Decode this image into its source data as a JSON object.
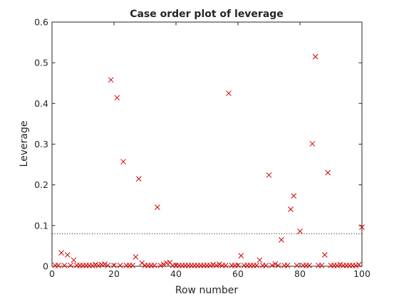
{
  "chart_data": {
    "type": "scatter",
    "title": "Case order plot of leverage",
    "xlabel": "Row number",
    "ylabel": "Leverage",
    "xlim": [
      0,
      100
    ],
    "ylim": [
      0,
      0.6
    ],
    "xticks": [
      0,
      20,
      40,
      60,
      80,
      100
    ],
    "xtick_labels": [
      "0",
      "20",
      "40",
      "60",
      "80",
      "100"
    ],
    "yticks": [
      0,
      0.1,
      0.2,
      0.3,
      0.4,
      0.5,
      0.6
    ],
    "ytick_labels": [
      "0",
      "0.1",
      "0.2",
      "0.3",
      "0.4",
      "0.5",
      "0.6"
    ],
    "grid": false,
    "marker": "x",
    "marker_color": "#d40000",
    "reference_line": {
      "y": 0.08,
      "style": "dotted",
      "color": "#000000"
    },
    "series": [
      {
        "points": [
          [
            1,
            0.002
          ],
          [
            2,
            0.002
          ],
          [
            3,
            0.033
          ],
          [
            4,
            0.002
          ],
          [
            5,
            0.028
          ],
          [
            6,
            0.002
          ],
          [
            7,
            0.015
          ],
          [
            8,
            0.002
          ],
          [
            9,
            0.002
          ],
          [
            10,
            0.002
          ],
          [
            11,
            0.002
          ],
          [
            12,
            0.002
          ],
          [
            13,
            0.002
          ],
          [
            14,
            0.004
          ],
          [
            15,
            0.002
          ],
          [
            16,
            0.004
          ],
          [
            17,
            0.005
          ],
          [
            18,
            0.002
          ],
          [
            19,
            0.458
          ],
          [
            20,
            0.002
          ],
          [
            21,
            0.414
          ],
          [
            22,
            0.002
          ],
          [
            23,
            0.257
          ],
          [
            24,
            0.002
          ],
          [
            25,
            0.002
          ],
          [
            26,
            0.002
          ],
          [
            27,
            0.023
          ],
          [
            28,
            0.215
          ],
          [
            29,
            0.008
          ],
          [
            30,
            0.002
          ],
          [
            31,
            0.002
          ],
          [
            32,
            0.002
          ],
          [
            33,
            0.002
          ],
          [
            34,
            0.145
          ],
          [
            35,
            0.002
          ],
          [
            36,
            0.005
          ],
          [
            37,
            0.008
          ],
          [
            38,
            0.009
          ],
          [
            39,
            0.002
          ],
          [
            40,
            0.002
          ],
          [
            41,
            0.002
          ],
          [
            42,
            0.002
          ],
          [
            43,
            0.002
          ],
          [
            44,
            0.002
          ],
          [
            45,
            0.002
          ],
          [
            46,
            0.002
          ],
          [
            47,
            0.002
          ],
          [
            48,
            0.002
          ],
          [
            49,
            0.002
          ],
          [
            50,
            0.002
          ],
          [
            51,
            0.002
          ],
          [
            52,
            0.004
          ],
          [
            53,
            0.002
          ],
          [
            54,
            0.005
          ],
          [
            55,
            0.002
          ],
          [
            56,
            0.002
          ],
          [
            57,
            0.425
          ],
          [
            58,
            0.002
          ],
          [
            59,
            0.002
          ],
          [
            60,
            0.002
          ],
          [
            61,
            0.026
          ],
          [
            62,
            0.002
          ],
          [
            63,
            0.002
          ],
          [
            64,
            0.002
          ],
          [
            65,
            0.002
          ],
          [
            66,
            0.002
          ],
          [
            67,
            0.015
          ],
          [
            68,
            0.002
          ],
          [
            69,
            0.002
          ],
          [
            70,
            0.224
          ],
          [
            71,
            0.002
          ],
          [
            72,
            0.006
          ],
          [
            73,
            0.002
          ],
          [
            74,
            0.065
          ],
          [
            75,
            0.002
          ],
          [
            76,
            0.002
          ],
          [
            77,
            0.14
          ],
          [
            78,
            0.173
          ],
          [
            79,
            0.002
          ],
          [
            80,
            0.086
          ],
          [
            81,
            0.002
          ],
          [
            82,
            0.002
          ],
          [
            83,
            0.002
          ],
          [
            84,
            0.301
          ],
          [
            85,
            0.515
          ],
          [
            86,
            0.002
          ],
          [
            87,
            0.002
          ],
          [
            88,
            0.028
          ],
          [
            89,
            0.23
          ],
          [
            90,
            0.002
          ],
          [
            91,
            0.002
          ],
          [
            92,
            0.002
          ],
          [
            93,
            0.004
          ],
          [
            94,
            0.002
          ],
          [
            95,
            0.002
          ],
          [
            96,
            0.002
          ],
          [
            97,
            0.002
          ],
          [
            98,
            0.002
          ],
          [
            99,
            0.004
          ],
          [
            100,
            0.096
          ]
        ]
      }
    ]
  }
}
